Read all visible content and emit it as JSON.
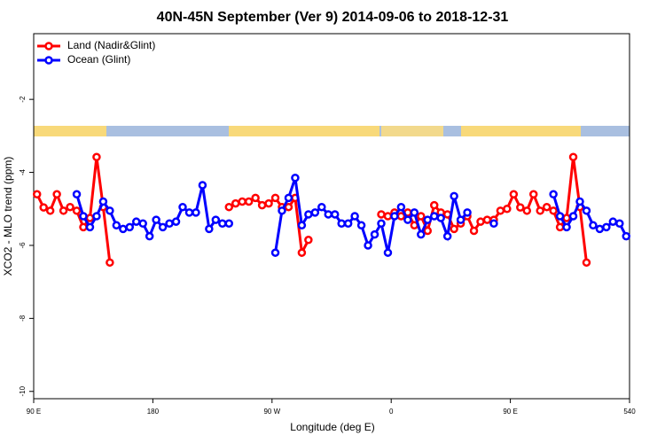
{
  "chart_data": {
    "type": "line",
    "title": "40N-45N September (Ver 9)   2014-09-06 to 2018-12-31",
    "x_label": "Longitude (deg E)",
    "y_label": "XCO2 - MLO trend (ppm)",
    "xlim": [
      90,
      540
    ],
    "ylim": [
      -10.2,
      -0.2
    ],
    "xticks": [
      {
        "value": 90,
        "label": "90 E"
      },
      180,
      {
        "value": 270,
        "label": "90 W"
      },
      {
        "value": 360,
        "label": "0"
      },
      {
        "value": 450,
        "label": "90 E"
      },
      540
    ],
    "yticks": [
      -10,
      -8,
      -6,
      -4,
      -2
    ],
    "legend": "upper left",
    "grid": false,
    "x": [
      92.5,
      97.5,
      102.5,
      107.5,
      112.5,
      117.5,
      122.5,
      127.5,
      132.5,
      137.5,
      142.5,
      147.5,
      152.5,
      157.5,
      162.5,
      167.5,
      172.5,
      177.5,
      182.5,
      187.5,
      192.5,
      197.5,
      202.5,
      207.5,
      212.5,
      217.5,
      222.5,
      227.5,
      232.5,
      237.5,
      242.5,
      247.5,
      252.5,
      257.5,
      262.5,
      267.5,
      272.5,
      277.5,
      282.5,
      287.5,
      292.5,
      297.5,
      302.5,
      307.5,
      312.5,
      317.5,
      322.5,
      327.5,
      332.5,
      337.5,
      342.5,
      347.5,
      352.5,
      357.5,
      362.5,
      367.5,
      372.5,
      377.5,
      382.5,
      387.5,
      392.5,
      397.5,
      402.5,
      407.5,
      412.5,
      417.5,
      422.5,
      427.5,
      432.5,
      437.5,
      442.5,
      447.5,
      452.5,
      457.5,
      462.5,
      467.5,
      472.5,
      477.5,
      482.5,
      487.5,
      492.5,
      497.5,
      502.5,
      507.5,
      512.5,
      517.5,
      522.5,
      527.5,
      532.5,
      537.5
    ],
    "series": [
      {
        "name": "Land (Nadir&Glint)",
        "color": "#ff0000",
        "values": [
          -4.6,
          -4.96,
          -5.05,
          -4.6,
          -5.05,
          -4.95,
          -5.05,
          -5.5,
          -5.25,
          -3.58,
          -4.95,
          -6.47,
          null,
          null,
          null,
          null,
          null,
          null,
          null,
          null,
          null,
          null,
          null,
          null,
          null,
          null,
          null,
          null,
          null,
          -4.95,
          -4.85,
          -4.8,
          -4.8,
          -4.7,
          -4.9,
          -4.85,
          -4.7,
          -4.95,
          -4.95,
          -4.7,
          -6.2,
          -5.85,
          null,
          null,
          null,
          null,
          null,
          null,
          null,
          null,
          null,
          null,
          -5.15,
          -5.2,
          -5.1,
          -5.2,
          -5.1,
          -5.45,
          -5.2,
          -5.6,
          -4.9,
          -5.1,
          -5.15,
          -5.55,
          -5.4,
          -5.2,
          -5.6,
          -5.35,
          -5.3,
          -5.3,
          -5.05,
          -5.0,
          -4.6,
          -4.96,
          -5.05,
          -4.6,
          -5.05,
          -4.95,
          -5.05,
          -5.5,
          -5.25,
          -3.58,
          -4.95,
          -6.47,
          null,
          null,
          null,
          null,
          null,
          null
        ]
      },
      {
        "name": "Ocean (Glint)",
        "color": "#0000ff",
        "values": [
          null,
          null,
          null,
          null,
          null,
          null,
          -4.6,
          -5.2,
          -5.5,
          -5.2,
          -4.8,
          -5.05,
          -5.45,
          -5.55,
          -5.5,
          -5.35,
          -5.4,
          -5.75,
          -5.3,
          -5.5,
          -5.4,
          -5.35,
          -4.95,
          -5.1,
          -5.1,
          -4.35,
          -5.55,
          -5.3,
          -5.4,
          -5.4,
          null,
          null,
          null,
          null,
          null,
          null,
          -6.2,
          -5.05,
          -4.7,
          -4.15,
          -5.45,
          -5.15,
          -5.1,
          -4.95,
          -5.15,
          -5.15,
          -5.4,
          -5.4,
          -5.2,
          -5.45,
          -6.0,
          -5.7,
          -5.4,
          -6.2,
          -5.2,
          -4.95,
          -5.3,
          -5.1,
          -5.7,
          -5.3,
          -5.2,
          -5.25,
          -5.75,
          -4.65,
          -5.3,
          -5.1,
          null,
          null,
          null,
          -5.4,
          null,
          null,
          null,
          null,
          null,
          null,
          null,
          null,
          -4.6,
          -5.2,
          -5.5,
          -5.2,
          -4.8,
          -5.05,
          -5.45,
          -5.55,
          -5.5,
          -5.35,
          -5.4,
          -5.75
        ]
      }
    ]
  }
}
